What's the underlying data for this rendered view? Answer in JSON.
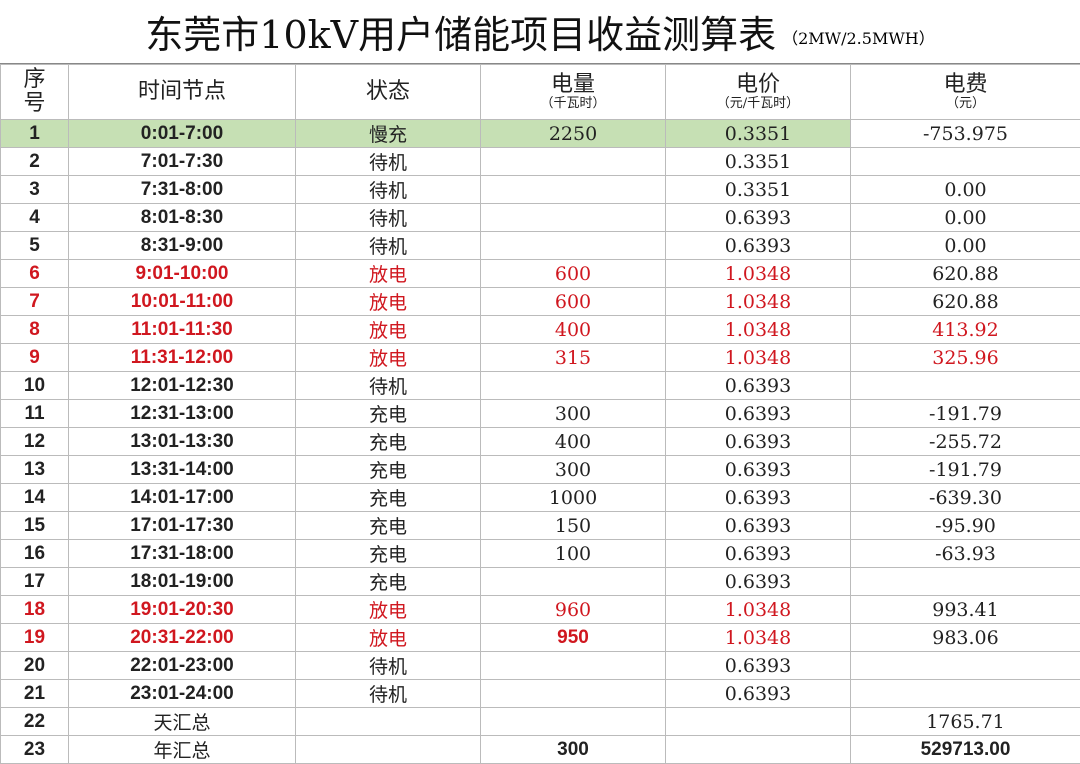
{
  "title": "东莞市10kV用户储能项目收益测算表",
  "subtitle": "（2MW/2.5MWH）",
  "headers": {
    "seq_a": "序",
    "seq_b": "号",
    "time": "时间节点",
    "status": "状态",
    "energy": "电量",
    "energy_unit": "（千瓦时）",
    "price": "电价",
    "price_unit": "（元/千瓦时）",
    "fee": "电费",
    "fee_unit": "（元）"
  },
  "colors": {
    "highlight": "#c6e0b4",
    "discharge": "#d0171f"
  },
  "rows": [
    {
      "n": "1",
      "t": "0:01-7:00",
      "s": "慢充",
      "e": "2250",
      "p": "0.3351",
      "f": "-753.975"
    },
    {
      "n": "2",
      "t": "7:01-7:30",
      "s": "待机",
      "e": "",
      "p": "0.3351",
      "f": ""
    },
    {
      "n": "3",
      "t": "7:31-8:00",
      "s": "待机",
      "e": "",
      "p": "0.3351",
      "f": "0.00"
    },
    {
      "n": "4",
      "t": "8:01-8:30",
      "s": "待机",
      "e": "",
      "p": "0.6393",
      "f": "0.00"
    },
    {
      "n": "5",
      "t": "8:31-9:00",
      "s": "待机",
      "e": "",
      "p": "0.6393",
      "f": "0.00"
    },
    {
      "n": "6",
      "t": "9:01-10:00",
      "s": "放电",
      "e": "600",
      "p": "1.0348",
      "f": "620.88"
    },
    {
      "n": "7",
      "t": "10:01-11:00",
      "s": "放电",
      "e": "600",
      "p": "1.0348",
      "f": "620.88"
    },
    {
      "n": "8",
      "t": "11:01-11:30",
      "s": "放电",
      "e": "400",
      "p": "1.0348",
      "f": "413.92"
    },
    {
      "n": "9",
      "t": "11:31-12:00",
      "s": "放电",
      "e": "315",
      "p": "1.0348",
      "f": "325.96"
    },
    {
      "n": "10",
      "t": "12:01-12:30",
      "s": "待机",
      "e": "",
      "p": "0.6393",
      "f": ""
    },
    {
      "n": "11",
      "t": "12:31-13:00",
      "s": "充电",
      "e": "300",
      "p": "0.6393",
      "f": "-191.79"
    },
    {
      "n": "12",
      "t": "13:01-13:30",
      "s": "充电",
      "e": "400",
      "p": "0.6393",
      "f": "-255.72"
    },
    {
      "n": "13",
      "t": "13:31-14:00",
      "s": "充电",
      "e": "300",
      "p": "0.6393",
      "f": "-191.79"
    },
    {
      "n": "14",
      "t": "14:01-17:00",
      "s": "充电",
      "e": "1000",
      "p": "0.6393",
      "f": "-639.30"
    },
    {
      "n": "15",
      "t": "17:01-17:30",
      "s": "充电",
      "e": "150",
      "p": "0.6393",
      "f": "-95.90"
    },
    {
      "n": "16",
      "t": "17:31-18:00",
      "s": "充电",
      "e": "100",
      "p": "0.6393",
      "f": "-63.93"
    },
    {
      "n": "17",
      "t": "18:01-19:00",
      "s": "充电",
      "e": "",
      "p": "0.6393",
      "f": ""
    },
    {
      "n": "18",
      "t": "19:01-20:30",
      "s": "放电",
      "e": "960",
      "p": "1.0348",
      "f": "993.41"
    },
    {
      "n": "19",
      "t": "20:31-22:00",
      "s": "放电",
      "e": "950",
      "p": "1.0348",
      "f": "983.06"
    },
    {
      "n": "20",
      "t": "22:01-23:00",
      "s": "待机",
      "e": "",
      "p": "0.6393",
      "f": ""
    },
    {
      "n": "21",
      "t": "23:01-24:00",
      "s": "待机",
      "e": "",
      "p": "0.6393",
      "f": ""
    }
  ],
  "totals": [
    {
      "n": "22",
      "label": "天汇总",
      "e": "",
      "f": "1765.71"
    },
    {
      "n": "23",
      "label": "年汇总",
      "e": "300",
      "f": "529713.00"
    }
  ]
}
